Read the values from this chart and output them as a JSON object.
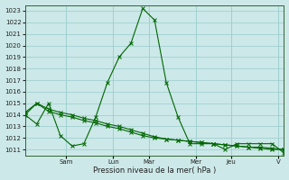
{
  "xlabel": "Pression niveau de la mer( hPa )",
  "ylim": [
    1010.5,
    1023.5
  ],
  "yticks": [
    1011,
    1012,
    1013,
    1014,
    1015,
    1016,
    1017,
    1018,
    1019,
    1020,
    1021,
    1022,
    1023
  ],
  "day_labels": [
    "Sam",
    "Lun",
    "Mar",
    "Mer",
    "Jeu",
    "V"
  ],
  "bg_color": "#cce8e8",
  "grid_color": "#99cccc",
  "line_color": "#006600",
  "line1_x": [
    0,
    1,
    2,
    3,
    4,
    5,
    6,
    7,
    8,
    9,
    10,
    11,
    12,
    13,
    14,
    15,
    16,
    17,
    18,
    19,
    20,
    21,
    22
  ],
  "line1_y": [
    1014.0,
    1013.2,
    1015.0,
    1012.2,
    1011.3,
    1011.5,
    1013.8,
    1016.8,
    1019.0,
    1020.2,
    1023.2,
    1022.2,
    1016.8,
    1013.8,
    1011.5,
    1011.5,
    1011.5,
    1011.0,
    1011.5,
    1011.5,
    1011.5,
    1011.5,
    1010.7
  ],
  "line2_x": [
    0,
    1,
    2,
    3,
    4,
    5,
    6,
    7,
    8,
    9,
    10,
    11,
    12,
    13,
    14,
    15,
    16,
    17,
    18,
    19,
    20,
    21,
    22
  ],
  "line2_y": [
    1014.2,
    1015.0,
    1014.5,
    1014.2,
    1014.0,
    1013.7,
    1013.5,
    1013.2,
    1013.0,
    1012.7,
    1012.4,
    1012.1,
    1011.9,
    1011.8,
    1011.7,
    1011.6,
    1011.5,
    1011.4,
    1011.3,
    1011.2,
    1011.2,
    1011.1,
    1011.0
  ],
  "line3_x": [
    0,
    1,
    2,
    3,
    4,
    5,
    6,
    7,
    8,
    9,
    10,
    11,
    12,
    13,
    14,
    15,
    16,
    17,
    18,
    19,
    20,
    21,
    22
  ],
  "line3_y": [
    1014.0,
    1015.0,
    1014.3,
    1014.0,
    1013.8,
    1013.5,
    1013.3,
    1013.0,
    1012.8,
    1012.5,
    1012.2,
    1012.0,
    1011.9,
    1011.8,
    1011.7,
    1011.6,
    1011.5,
    1011.4,
    1011.3,
    1011.2,
    1011.1,
    1011.0,
    1011.0
  ],
  "day_tick_x": [
    3.5,
    7.5,
    10.5,
    14.5,
    17.5,
    21.5
  ],
  "vert_line_x": [
    3.5,
    7.5,
    10.5,
    14.5,
    17.5,
    21.5
  ],
  "xlim": [
    0,
    22
  ],
  "figsize": [
    3.2,
    2.0
  ],
  "dpi": 100
}
